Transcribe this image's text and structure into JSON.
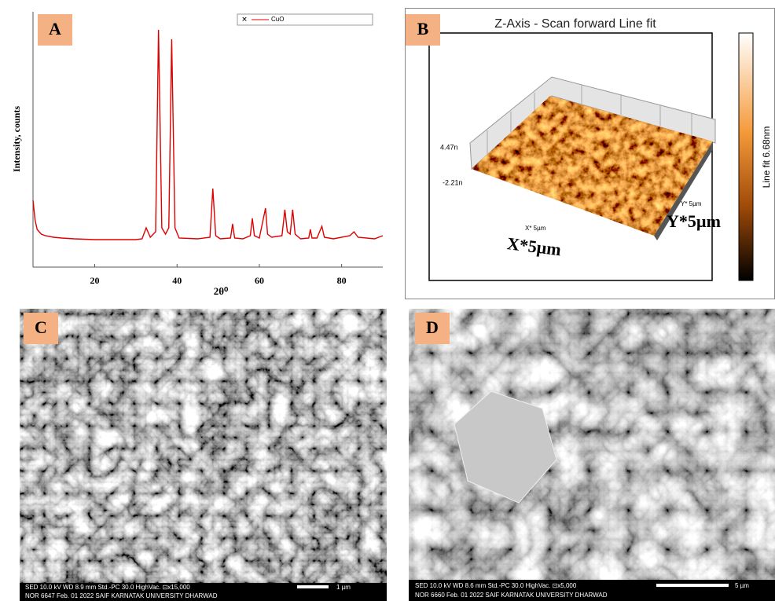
{
  "chart_data": {
    "type": "line",
    "y_label": "Intensity, counts",
    "x_label": "2θ⁰",
    "x": [
      5,
      5.5,
      6,
      7,
      8,
      10,
      12,
      15,
      20,
      25,
      30,
      31.5,
      32.5,
      33.5,
      34.8,
      35.5,
      36.3,
      37.2,
      38,
      38.7,
      39.5,
      40.5,
      45,
      48,
      48.7,
      49.4,
      50.5,
      53,
      53.5,
      54,
      56,
      57.8,
      58.3,
      58.8,
      60,
      61.5,
      62,
      63,
      65.5,
      66.2,
      66.8,
      67.5,
      68.1,
      68.7,
      70,
      72,
      72.4,
      72.8,
      74,
      75.2,
      75.8,
      78,
      82,
      83,
      84,
      88,
      90
    ],
    "series": [
      {
        "name": "CuO",
        "color": "#e00000",
        "values": [
          85,
          60,
          48,
          42,
          40,
          38,
          37,
          36,
          35,
          35,
          35,
          36,
          50,
          38,
          45,
          302,
          50,
          42,
          50,
          290,
          50,
          37,
          36,
          38,
          100,
          40,
          36,
          37,
          55,
          37,
          36,
          40,
          62,
          40,
          37,
          75,
          42,
          38,
          40,
          73,
          45,
          42,
          73,
          42,
          36,
          37,
          48,
          37,
          37,
          52,
          38,
          36,
          40,
          45,
          38,
          36,
          40
        ]
      }
    ],
    "xlim": [
      5,
      90
    ],
    "ylim": [
      0,
      325
    ],
    "xticks": [
      20,
      40,
      60,
      80
    ],
    "legend": "upper right"
  },
  "panels": {
    "a": {
      "label": "A"
    },
    "b": {
      "label": "B",
      "title": "Z-Axis - Scan forward   Line fit",
      "z_max": "4.47n",
      "z_min": "-2.21n",
      "x_axis": "X* 5µm",
      "y_axis": "Y* 5µm",
      "x_note": "X*5µm",
      "y_note": "Y*5µm",
      "colorbar": "Line fit 6.68nm"
    },
    "c": {
      "label": "C",
      "info_1": "SED   10.0 kV   WD 8.9 mm     Std.-PC 30.0    HighVac.  ⊡x15,000",
      "info_2": "NOR   6647    Feb. 01 2022     SAIF KARNATAK UNIVERSITY DHARWAD",
      "scale": "1 µm"
    },
    "d": {
      "label": "D",
      "info_1": "SED   10.0 kV   WD 8.6 mm     Std.-PC 30.0   HighVac.  ⊡x5,000",
      "info_2": "NOR   6660    Feb. 01 2022     SAIF KARNATAK UNIVERSITY DHARWAD",
      "scale": "5 µm"
    }
  }
}
